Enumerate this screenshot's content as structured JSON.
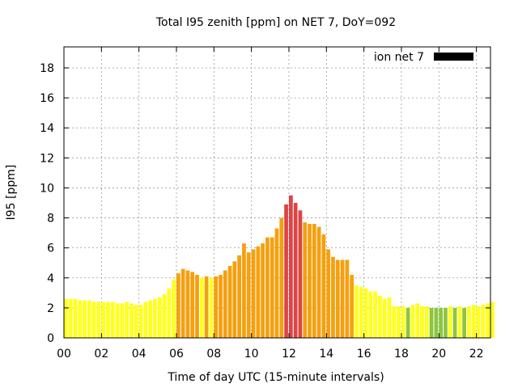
{
  "chart_data": {
    "type": "bar",
    "title": "Total I95 zenith [ppm] on NET 7, DoY=092",
    "xlabel": "Time of day UTC (15-minute intervals)",
    "ylabel": "I95 [ppm]",
    "xlim": [
      0,
      22.75
    ],
    "ylim": [
      0,
      19.4
    ],
    "x_tick_values": [
      0,
      2,
      4,
      6,
      8,
      10,
      12,
      14,
      16,
      18,
      20,
      22
    ],
    "x_tick_labels": [
      "00",
      "02",
      "04",
      "06",
      "08",
      "10",
      "12",
      "14",
      "16",
      "18",
      "20",
      "22"
    ],
    "y_ticks": [
      0,
      2,
      4,
      6,
      8,
      10,
      12,
      14,
      16,
      18
    ],
    "grid": true,
    "legend": {
      "label": "ion net 7",
      "color": "#000000",
      "placement": "top-right"
    },
    "interval_hours": 0.25,
    "values": [
      2.6,
      2.6,
      2.6,
      2.5,
      2.5,
      2.5,
      2.4,
      2.4,
      2.4,
      2.4,
      2.4,
      2.3,
      2.3,
      2.4,
      2.3,
      2.2,
      2.2,
      2.4,
      2.5,
      2.6,
      2.7,
      2.9,
      3.3,
      3.9,
      4.3,
      4.6,
      4.5,
      4.4,
      4.2,
      4.0,
      4.1,
      4.0,
      4.1,
      4.2,
      4.5,
      4.8,
      5.1,
      5.5,
      6.3,
      5.7,
      5.9,
      6.1,
      6.3,
      6.7,
      6.7,
      7.3,
      8.0,
      8.9,
      9.5,
      9.0,
      8.5,
      7.7,
      7.6,
      7.6,
      7.4,
      6.9,
      5.9,
      5.4,
      5.2,
      5.2,
      5.2,
      4.2,
      3.5,
      3.4,
      3.3,
      3.1,
      3.1,
      2.8,
      2.6,
      2.7,
      2.1,
      2.1,
      2.1,
      2.0,
      2.2,
      2.3,
      2.1,
      2.1,
      2.0,
      2.0,
      2.0,
      2.0,
      2.1,
      2.0,
      2.1,
      2.0,
      2.1,
      2.2,
      2.1,
      2.2,
      2.3,
      2.4
    ],
    "color_bins": [
      {
        "max": 2.0,
        "color": "#8cc63f"
      },
      {
        "max": 4.0,
        "color": "#ffff1e"
      },
      {
        "max": 8.0,
        "color": "#f5a00f"
      },
      {
        "max": 100,
        "color": "#dd4444"
      }
    ]
  }
}
